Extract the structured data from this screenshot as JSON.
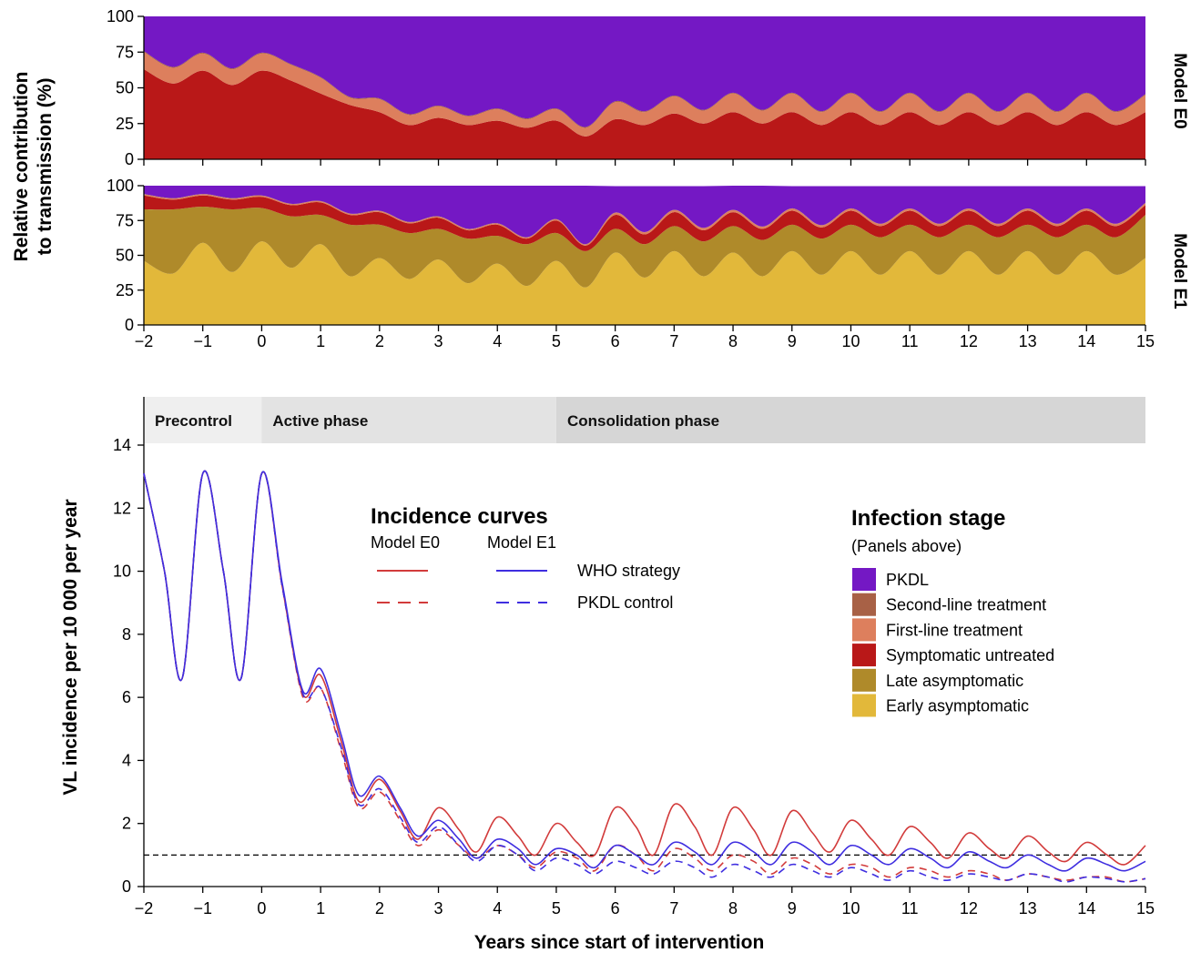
{
  "top_ylabel_line1": "Relative contribution",
  "top_ylabel_line2": "to transmission (%)",
  "xlabel": "Years since start of intervention",
  "ylabel": "VL incidence per 10 000 per year",
  "colors": {
    "PKDL": "#7418c4",
    "Second-line treatment": "#a86146",
    "First-line treatment": "#dd7f5d",
    "Symptomatic untreated": "#b91818",
    "Late asymptomatic": "#af8a2a",
    "Early asymptomatic": "#e2b83a",
    "model_e0_line": "#d23b3b",
    "model_e1_line": "#3f2ee0",
    "phase_precontrol": "#efefef",
    "phase_active": "#e3e3e3",
    "phase_consolidation": "#d6d6d6"
  },
  "phases": [
    {
      "label": "Precontrol",
      "start": -2,
      "end": 0
    },
    {
      "label": "Active phase",
      "start": 0,
      "end": 5
    },
    {
      "label": "Consolidation phase",
      "start": 5,
      "end": 15
    }
  ],
  "legend_curves": {
    "title": "Incidence curves",
    "col_e0": "Model E0",
    "col_e1": "Model E1",
    "row_who": "WHO strategy",
    "row_pkdl": "PKDL control"
  },
  "legend_stages": {
    "title": "Infection stage",
    "subtitle": "(Panels above)",
    "items": [
      "PKDL",
      "Second-line treatment",
      "First-line treatment",
      "Symptomatic untreated",
      "Late asymptomatic",
      "Early asymptomatic"
    ]
  },
  "chart_data": [
    {
      "type": "area",
      "panel_label": "Model E0",
      "xlim": [
        -2,
        15
      ],
      "ylim": [
        0,
        100
      ],
      "x_ticks": [
        -2,
        -1,
        0,
        1,
        2,
        3,
        4,
        5,
        6,
        7,
        8,
        9,
        10,
        11,
        12,
        13,
        14,
        15
      ],
      "y_ticks": [
        0,
        25,
        50,
        75,
        100
      ],
      "stacked": true,
      "x": [
        -2,
        -1.5,
        -1,
        -0.5,
        0,
        0.5,
        1,
        1.5,
        2,
        2.5,
        3,
        3.5,
        4,
        4.5,
        5,
        5.5,
        6,
        6.5,
        7,
        7.5,
        8,
        8.5,
        9,
        9.5,
        10,
        10.5,
        11,
        11.5,
        12,
        12.5,
        13,
        13.5,
        14,
        14.5,
        15
      ],
      "series": [
        {
          "name": "Symptomatic untreated",
          "values": [
            63,
            53,
            62,
            52,
            62,
            55,
            46,
            38,
            33,
            24,
            29,
            24,
            27,
            22,
            27,
            16,
            28,
            24,
            32,
            25,
            33,
            25,
            33,
            24,
            33,
            24,
            33,
            24,
            33,
            24,
            33,
            24,
            33,
            24,
            33
          ]
        },
        {
          "name": "First-line treatment",
          "values": [
            12,
            11,
            12,
            11,
            12,
            11,
            11,
            5,
            9,
            7,
            8,
            6,
            8,
            6,
            8,
            6,
            12,
            9,
            12,
            9,
            13,
            9,
            13,
            9,
            13,
            9,
            13,
            9,
            13,
            9,
            13,
            9,
            13,
            9,
            12
          ]
        },
        {
          "name": "Second-line treatment",
          "values": [
            0.6,
            0.6,
            0.6,
            0.6,
            0.6,
            0.6,
            0.6,
            0.6,
            0.6,
            0.6,
            0.6,
            0.6,
            0.6,
            0.6,
            0.6,
            0.6,
            0.6,
            0.6,
            0.6,
            0.6,
            0.6,
            0.6,
            0.6,
            0.6,
            0.6,
            0.6,
            0.6,
            0.6,
            0.6,
            0.6,
            0.6,
            0.6,
            0.6,
            0.6,
            0.6
          ]
        },
        {
          "name": "PKDL",
          "values": [
            24.4,
            35.4,
            25.4,
            36.4,
            25.4,
            33.4,
            42.4,
            56.4,
            57.4,
            68.4,
            62.4,
            69.4,
            64.4,
            71.4,
            64.4,
            77.4,
            59.4,
            66.4,
            55.4,
            65.4,
            53.4,
            65.4,
            53.4,
            66.4,
            53.4,
            66.4,
            53.4,
            66.4,
            53.4,
            66.4,
            53.4,
            66.4,
            53.4,
            66.4,
            54.4
          ]
        }
      ]
    },
    {
      "type": "area",
      "panel_label": "Model E1",
      "xlim": [
        -2,
        15
      ],
      "ylim": [
        0,
        100
      ],
      "x_ticks": [
        -2,
        -1,
        0,
        1,
        2,
        3,
        4,
        5,
        6,
        7,
        8,
        9,
        10,
        11,
        12,
        13,
        14,
        15
      ],
      "y_ticks": [
        0,
        25,
        50,
        75,
        100
      ],
      "stacked": true,
      "x": [
        -2,
        -1.5,
        -1,
        -0.5,
        0,
        0.5,
        1,
        1.5,
        2,
        2.5,
        3,
        3.5,
        4,
        4.5,
        5,
        5.5,
        6,
        6.5,
        7,
        7.5,
        8,
        8.5,
        9,
        9.5,
        10,
        10.5,
        11,
        11.5,
        12,
        12.5,
        13,
        13.5,
        14,
        14.5,
        15
      ],
      "series": [
        {
          "name": "Early asymptomatic",
          "values": [
            46,
            37,
            59,
            38,
            60,
            41,
            58,
            35,
            48,
            33,
            47,
            30,
            44,
            28,
            46,
            27,
            52,
            34,
            53,
            35,
            52,
            35,
            53,
            36,
            53,
            36,
            53,
            36,
            53,
            36,
            53,
            36,
            53,
            36,
            48
          ]
        },
        {
          "name": "Late asymptomatic",
          "values": [
            37,
            46,
            26,
            45,
            24,
            37,
            21,
            37,
            24,
            33,
            22,
            32,
            20,
            30,
            20,
            26,
            17,
            24,
            18,
            25,
            19,
            26,
            19,
            26,
            19,
            27,
            19,
            27,
            19,
            27,
            19,
            27,
            19,
            27,
            31
          ]
        },
        {
          "name": "Symptomatic untreated",
          "values": [
            10,
            7,
            8,
            7,
            8,
            8,
            9,
            7,
            9,
            7,
            8,
            6,
            8,
            4,
            9,
            4,
            10,
            7,
            10,
            8,
            10,
            8,
            10,
            8,
            10,
            8,
            10,
            8,
            10,
            8,
            10,
            8,
            10,
            8,
            7
          ]
        },
        {
          "name": "First-line treatment",
          "values": [
            0.8,
            0.8,
            0.8,
            0.8,
            0.8,
            0.8,
            0.8,
            0.8,
            0.8,
            0.8,
            0.8,
            0.8,
            0.8,
            0.8,
            0.8,
            0.8,
            1.5,
            1.5,
            1.5,
            1.5,
            1.5,
            1.5,
            1.5,
            1.5,
            1.5,
            1.5,
            1.5,
            1.5,
            1.5,
            1.5,
            1.5,
            1.5,
            1.5,
            1.5,
            1.5
          ]
        },
        {
          "name": "Second-line treatment",
          "values": [
            0.2,
            0.2,
            0.2,
            0.2,
            0.2,
            0.2,
            0.2,
            0.2,
            0.2,
            0.2,
            0.2,
            0.2,
            0.2,
            0.2,
            0.2,
            0.2,
            0.2,
            0.2,
            0.2,
            0.2,
            0.2,
            0.2,
            0.2,
            0.2,
            0.2,
            0.2,
            0.2,
            0.2,
            0.2,
            0.2,
            0.2,
            0.2,
            0.2,
            0.2,
            0.2
          ]
        },
        {
          "name": "PKDL",
          "values": [
            6,
            9,
            6,
            9,
            7,
            13,
            11,
            20,
            18,
            26,
            22,
            31,
            27,
            37,
            24,
            42,
            19,
            33,
            17,
            30,
            18,
            30,
            16,
            28,
            16,
            27,
            16,
            27,
            16,
            27,
            16,
            27,
            16,
            27,
            12
          ]
        }
      ]
    },
    {
      "type": "line",
      "xlim": [
        -2,
        15
      ],
      "ylim": [
        0,
        15.5
      ],
      "x_ticks": [
        -2,
        -1,
        0,
        1,
        2,
        3,
        4,
        5,
        6,
        7,
        8,
        9,
        10,
        11,
        12,
        13,
        14,
        15
      ],
      "y_ticks": [
        0,
        2,
        4,
        6,
        8,
        10,
        12,
        14
      ],
      "reference_line_y": 1,
      "x": [
        -2,
        -1.65,
        -1.35,
        -1,
        -0.65,
        -0.35,
        0,
        0.35,
        0.7,
        1,
        1.35,
        1.65,
        2,
        2.35,
        2.65,
        3,
        3.35,
        3.65,
        4,
        4.35,
        4.65,
        5,
        5.35,
        5.65,
        6,
        6.35,
        6.65,
        7,
        7.35,
        7.65,
        8,
        8.35,
        8.65,
        9,
        9.35,
        9.65,
        10,
        10.35,
        10.65,
        11,
        11.35,
        11.65,
        12,
        12.35,
        12.65,
        13,
        13.35,
        13.65,
        14,
        14.35,
        14.65,
        15
      ],
      "series": [
        {
          "name": "Model E0 WHO strategy",
          "values": [
            13.1,
            10,
            6.6,
            13.1,
            10,
            6.6,
            13.1,
            9.5,
            6.1,
            6.7,
            4.6,
            2.7,
            3.4,
            2.4,
            1.5,
            2.5,
            1.8,
            1.1,
            2.2,
            1.6,
            1.0,
            2.0,
            1.4,
            1.0,
            2.5,
            1.9,
            1.0,
            2.6,
            1.9,
            1.0,
            2.5,
            1.8,
            1.0,
            2.4,
            1.7,
            1.1,
            2.1,
            1.5,
            1.0,
            1.9,
            1.4,
            0.9,
            1.7,
            1.2,
            0.9,
            1.6,
            1.1,
            0.8,
            1.4,
            1.0,
            0.7,
            1.3
          ]
        },
        {
          "name": "Model E0 PKDL control",
          "values": [
            13.1,
            10,
            6.6,
            13.1,
            10,
            6.6,
            13.1,
            9.5,
            6.0,
            6.3,
            4.3,
            2.5,
            3.0,
            2.1,
            1.3,
            1.8,
            1.3,
            0.9,
            1.3,
            1.0,
            0.6,
            1.1,
            0.9,
            0.5,
            1.3,
            1.0,
            0.5,
            1.2,
            0.9,
            0.5,
            1.0,
            0.8,
            0.4,
            0.9,
            0.7,
            0.4,
            0.7,
            0.6,
            0.3,
            0.6,
            0.5,
            0.3,
            0.5,
            0.4,
            0.2,
            0.4,
            0.3,
            0.2,
            0.3,
            0.3,
            0.15,
            0.25
          ]
        },
        {
          "name": "Model E1 WHO strategy",
          "values": [
            13.1,
            10,
            6.6,
            13.1,
            10,
            6.6,
            13.1,
            9.6,
            6.2,
            6.9,
            4.8,
            2.9,
            3.5,
            2.5,
            1.6,
            2.1,
            1.5,
            0.9,
            1.5,
            1.2,
            0.7,
            1.2,
            1.0,
            0.6,
            1.3,
            1.0,
            0.7,
            1.4,
            1.1,
            0.7,
            1.4,
            1.1,
            0.7,
            1.4,
            1.1,
            0.7,
            1.3,
            1.0,
            0.7,
            1.2,
            0.9,
            0.6,
            1.1,
            0.8,
            0.6,
            1.0,
            0.7,
            0.5,
            0.9,
            0.7,
            0.5,
            0.8
          ]
        },
        {
          "name": "Model E1 PKDL control",
          "values": [
            13.1,
            10,
            6.6,
            13.1,
            10,
            6.6,
            13.1,
            9.5,
            6.1,
            6.3,
            4.4,
            2.6,
            3.1,
            2.2,
            1.4,
            1.9,
            1.3,
            0.8,
            1.3,
            1.0,
            0.5,
            0.9,
            0.7,
            0.4,
            0.8,
            0.6,
            0.4,
            0.8,
            0.6,
            0.3,
            0.7,
            0.5,
            0.3,
            0.7,
            0.5,
            0.3,
            0.6,
            0.4,
            0.2,
            0.5,
            0.3,
            0.2,
            0.4,
            0.3,
            0.2,
            0.4,
            0.3,
            0.15,
            0.3,
            0.25,
            0.15,
            0.25
          ]
        }
      ]
    }
  ]
}
